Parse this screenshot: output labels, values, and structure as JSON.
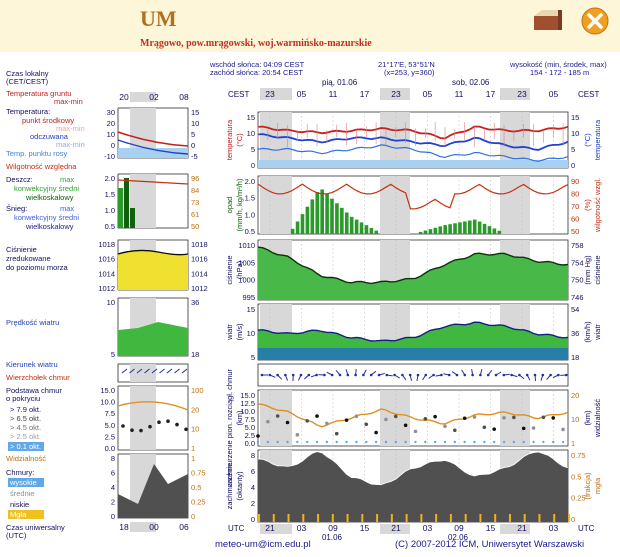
{
  "header": {
    "title": "UM",
    "subtitle": "Mrągowo, pow.mrągowski, woj.warmińsko-mazurskie"
  },
  "info": {
    "sunrise": "wschód słońca: 04:09 CEST",
    "sunset": "zachód słońca: 20:54 CEST",
    "coords": "21°17'E, 53°51'N",
    "grid": "(x=253, y=360)",
    "height_label": "wysokość (min, środek, max)",
    "height_values": "154 - 172 - 185 m"
  },
  "legend": {
    "local_time": "Czas lokalny",
    "local_time_sub": "(CET/CEST)",
    "soil_temp": "Temperatura gruntu",
    "soil_temp_sub": "max-min",
    "temperature": "Temperatura:",
    "mid_point": "punkt środkowy",
    "maxmin1": "max-min",
    "felt": "odczuwana",
    "maxmin2": "max-min",
    "dew": "Temp. punktu rosy",
    "humidity": "Wilgotność względna",
    "rain": "Deszcz:",
    "rain_max": "max",
    "rain_conv": "konwekcyjny średni",
    "rain_large": "wielkoskalowy",
    "snow": "Śnieg:",
    "snow_max": "max",
    "snow_conv": "konwekcyjny średni",
    "snow_large": "wielkoskalowy",
    "pressure1": "Ciśnienie",
    "pressure2": "zredukowane",
    "pressure3": "do poziomu morza",
    "wind_speed": "Prędkość wiatru",
    "wind_dir": "Kierunek wiatru",
    "cloud_top": "Wierzchołek chmur",
    "cloud_base1": "Podstawa chmur",
    "cloud_base2": "o pokryciu",
    "okt79": "> 7.9 okt.",
    "okt65": "> 6.5 okt.",
    "okt45": "> 4.5 okt.",
    "okt25": "> 2.5 okt.",
    "okt01": "> 0.1 okt.",
    "visibility": "Widzialność",
    "clouds": "Chmury:",
    "high": "wysokie",
    "medium": "średnie",
    "low": "niskie",
    "fog": "Mgła",
    "utc1": "Czas uniwersalny",
    "utc2": "(UTC)"
  },
  "axes": {
    "cest": "CEST",
    "utc": "UTC",
    "day1": "pią, 01.06",
    "day2": "sob, 02.06",
    "utc_day1": "01.06",
    "utc_day2": "02.06",
    "local_hours": [
      "23",
      "05",
      "11",
      "17",
      "23",
      "05",
      "11",
      "17",
      "23",
      "05"
    ],
    "utc_hours": [
      "21",
      "03",
      "09",
      "15",
      "21",
      "03",
      "09",
      "15",
      "21",
      "03"
    ],
    "left_local_hours": [
      "20",
      "02",
      "08"
    ],
    "left_utc_hours": [
      "18",
      "00",
      "06"
    ],
    "ylab_temp": "temperatura",
    "ylab_temp_unit": "(°C)",
    "ylab_rain": "opad",
    "ylab_rain_unit": "(mm/h, kg/m²/h)",
    "ylab_hum": "wilgotność wzgl.",
    "ylab_hum_unit": "(%)",
    "ylab_press": "ciśnienie",
    "ylab_press_unit": "(hPa)",
    "ylab_mmhg": "(mm Hg)",
    "ylab_wind": "wiatr",
    "ylab_wind_unit": "(m/s)",
    "ylab_kmh": "(km/h)",
    "ylab_cb": "zachmurzenie pion. rozciągł. chmur",
    "ylab_cb_unit": "(km)",
    "ylab_vis": "widzialność",
    "ylab_vis_unit": "(km)",
    "ylab_cloud": "zachmurzenie",
    "ylab_cloud_unit": "(oktanty)",
    "ylab_fog": "(frakcja)",
    "ylab_fog2": "mgła",
    "temp_left_ticks": [
      "15",
      "10",
      "5",
      "0"
    ],
    "temp_right_ticks": [
      "15",
      "10",
      "5",
      "0"
    ],
    "rain_left_ticks": [
      "2.0",
      "1.5",
      "1.0",
      "0.5"
    ],
    "rain_right_ticks": [
      "90",
      "80",
      "70",
      "60",
      "50"
    ],
    "press_left_ticks": [
      "1010",
      "1005",
      "1000",
      "995"
    ],
    "press_right_ticks": [
      "758",
      "754",
      "750",
      "746"
    ],
    "wind_left_ticks": [
      "15",
      "10",
      "5"
    ],
    "wind_right_ticks": [
      "54",
      "36",
      "18"
    ],
    "cb_left_ticks": [
      "15.0",
      "12.5",
      "10.0",
      "7.5",
      "5.0",
      "2.5",
      "0.0"
    ],
    "cb_right_ticks": [
      "20",
      "10",
      "1"
    ],
    "cloud_left_ticks": [
      "8",
      "6",
      "4",
      "2",
      "0"
    ],
    "cloud_right_ticks": [
      "0.75",
      "0.5",
      "0.25",
      "0"
    ],
    "sm_temp_l": [
      "30",
      "20",
      "10",
      "0",
      "-10"
    ],
    "sm_temp_r": [
      "15",
      "10",
      "5",
      "0",
      "-5"
    ],
    "sm_rain_l": [
      "2.0",
      "1.5",
      "1.0",
      "0.5"
    ],
    "sm_rain_r": [
      "96",
      "84",
      "73",
      "61",
      "50"
    ],
    "sm_press_l": [
      "1018",
      "1016",
      "1014",
      "1012"
    ],
    "sm_press_r": [
      "1018",
      "1016",
      "1014",
      "1012"
    ],
    "sm_wind_l": [
      "10",
      "5"
    ],
    "sm_wind_r": [
      "36",
      "18"
    ],
    "sm_cb_l": [
      "15.0",
      "10.0",
      "7.5",
      "5.0",
      "2.5",
      "0.0"
    ],
    "sm_cb_r": [
      "100",
      "20",
      "10",
      "1"
    ],
    "sm_cl_l": [
      "8",
      "6",
      "4",
      "2",
      "0"
    ],
    "sm_cl_r": [
      "1",
      "0.75",
      "0.5",
      "0.25",
      "0"
    ]
  },
  "chart_data": [
    {
      "type": "line",
      "title": "temperatura",
      "x": [
        0,
        6,
        12,
        18,
        24,
        30,
        36,
        42,
        48,
        54,
        60
      ],
      "series": [
        {
          "name": "punkt środkowy",
          "values": [
            11,
            10,
            9.5,
            10,
            10.5,
            10,
            8,
            11,
            10,
            10,
            11
          ]
        },
        {
          "name": "odczuwana",
          "values": [
            9,
            8,
            7,
            8,
            8,
            7,
            6,
            8,
            6,
            5,
            7
          ]
        },
        {
          "name": "Temp. punktu rosy",
          "values": [
            5,
            5,
            4,
            5,
            6,
            5,
            3,
            4,
            3,
            2,
            3
          ]
        }
      ],
      "ylim": [
        0,
        15
      ]
    },
    {
      "type": "bar",
      "title": "opad",
      "x": [
        0,
        6,
        12,
        18,
        24,
        30,
        36,
        42,
        48,
        54,
        60
      ],
      "values": [
        0,
        0,
        1.6,
        0.6,
        0,
        0,
        0.3,
        0.5,
        0,
        0,
        0
      ],
      "ylim": [
        0,
        2
      ]
    },
    {
      "type": "area",
      "title": "ciśnienie",
      "x": [
        0,
        6,
        12,
        18,
        24,
        30,
        36,
        42,
        48,
        54,
        60
      ],
      "values": [
        1010,
        1007,
        1002,
        1000,
        1000,
        1001,
        1005,
        1008,
        1008,
        1006,
        1005
      ],
      "ylim": [
        995,
        1012
      ]
    },
    {
      "type": "area",
      "title": "wiatr",
      "x": [
        0,
        6,
        12,
        18,
        24,
        30,
        36,
        42,
        48,
        54,
        60
      ],
      "values": [
        8,
        7,
        8,
        6,
        5,
        6,
        9,
        10,
        9,
        7,
        6
      ],
      "ylim": [
        0,
        15
      ]
    },
    {
      "type": "line",
      "title": "widzialność",
      "x": [
        0,
        6,
        12,
        18,
        24,
        30,
        36,
        42,
        48,
        54,
        60
      ],
      "values": [
        15,
        12,
        7,
        10,
        13,
        10,
        8,
        11,
        12,
        10,
        12
      ],
      "ylim": [
        0,
        20
      ]
    },
    {
      "type": "area",
      "title": "zachmurzenie",
      "x": [
        0,
        6,
        12,
        18,
        24,
        30,
        36,
        42,
        48,
        54,
        60
      ],
      "values": [
        7,
        6,
        8,
        5,
        4,
        6,
        7,
        5,
        6,
        8,
        6
      ],
      "ylim": [
        0,
        8
      ]
    }
  ],
  "footer": {
    "email": "meteo-um@icm.edu.pl",
    "copyright": "(C) 2007-2012 ICM, Uniwersytet Warszawski"
  }
}
